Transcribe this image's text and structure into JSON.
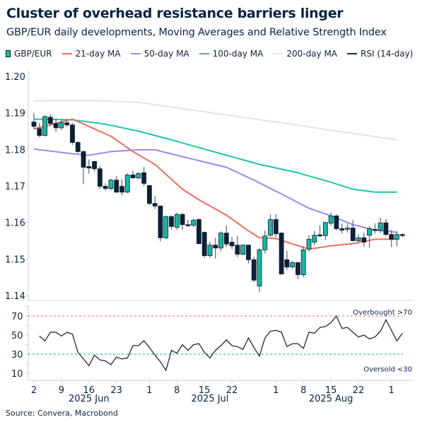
{
  "header": {
    "title": "Cluster of overhead resistance barriers linger",
    "subtitle": "GBP/EUR daily developments, Moving Averages and Relative Strength Index"
  },
  "legend": [
    {
      "label": "GBP/EUR",
      "type": "candle",
      "color": "#17b8a0"
    },
    {
      "label": "21-day MA",
      "type": "line",
      "color": "#e8705f"
    },
    {
      "label": "50-day MA",
      "type": "line",
      "color": "#9b87f5"
    },
    {
      "label": "100-day MA",
      "type": "line",
      "color": "#1ec6a8"
    },
    {
      "label": "200-day MA",
      "type": "line",
      "color": "#e4e4e4"
    },
    {
      "label": "RSI (14-day)",
      "type": "line",
      "color": "#1e2a3a"
    }
  ],
  "footer": {
    "source": "Source: Convera, Macrobond"
  },
  "chart_data": [
    {
      "type": "candlestick",
      "panel": "price",
      "ylim": [
        1.14,
        1.2
      ],
      "yticks": [
        "1.20",
        "1.19",
        "1.18",
        "1.17",
        "1.16",
        "1.15",
        "1.14"
      ],
      "colors": {
        "up": "#17b8a0",
        "down": "#0d2036",
        "wick": "#5a6675"
      },
      "series": [
        {
          "name": "GBP/EUR",
          "columns": [
            "date",
            "open",
            "high",
            "low",
            "close"
          ],
          "values": [
            [
              "2025-06-02",
              1.1875,
              1.19,
              1.1855,
              1.1863
            ],
            [
              "2025-06-03",
              1.1857,
              1.1872,
              1.1833,
              1.1838
            ],
            [
              "2025-06-04",
              1.1838,
              1.1893,
              1.1835,
              1.189
            ],
            [
              "2025-06-05",
              1.1888,
              1.1896,
              1.1863,
              1.1871
            ],
            [
              "2025-06-06",
              1.1871,
              1.1886,
              1.1848,
              1.1859
            ],
            [
              "2025-06-09",
              1.1859,
              1.1882,
              1.1853,
              1.1873
            ],
            [
              "2025-06-10",
              1.1873,
              1.1883,
              1.1862,
              1.1867
            ],
            [
              "2025-06-11",
              1.1867,
              1.1873,
              1.1812,
              1.1819
            ],
            [
              "2025-06-12",
              1.1819,
              1.1823,
              1.179,
              1.1794
            ],
            [
              "2025-06-13",
              1.1794,
              1.1798,
              1.1705,
              1.1751
            ],
            [
              "2025-06-16",
              1.1753,
              1.1773,
              1.1733,
              1.1749
            ],
            [
              "2025-06-17",
              1.1767,
              1.1768,
              1.174,
              1.1747
            ],
            [
              "2025-06-18",
              1.1747,
              1.1755,
              1.1692,
              1.1699
            ],
            [
              "2025-06-19",
              1.1699,
              1.1707,
              1.1686,
              1.1693
            ],
            [
              "2025-06-20",
              1.1693,
              1.172,
              1.1688,
              1.1716
            ],
            [
              "2025-06-23",
              1.1716,
              1.1727,
              1.168,
              1.1683
            ],
            [
              "2025-06-24",
              1.1699,
              1.1718,
              1.1675,
              1.1683
            ],
            [
              "2025-06-25",
              1.1683,
              1.1735,
              1.168,
              1.173
            ],
            [
              "2025-06-26",
              1.173,
              1.1742,
              1.172,
              1.1722
            ],
            [
              "2025-06-27",
              1.1722,
              1.1738,
              1.1718,
              1.1734
            ],
            [
              "2025-06-30",
              1.1736,
              1.1752,
              1.1699,
              1.1707
            ],
            [
              "2025-07-01",
              1.1701,
              1.1703,
              1.1648,
              1.1652
            ],
            [
              "2025-07-02",
              1.1652,
              1.1672,
              1.1637,
              1.1645
            ],
            [
              "2025-07-03",
              1.1645,
              1.1647,
              1.1548,
              1.1558
            ],
            [
              "2025-07-04",
              1.1558,
              1.162,
              1.1555,
              1.1616
            ],
            [
              "2025-07-07",
              1.1616,
              1.162,
              1.158,
              1.1589
            ],
            [
              "2025-07-08",
              1.1587,
              1.1627,
              1.158,
              1.1622
            ],
            [
              "2025-07-09",
              1.1622,
              1.1627,
              1.158,
              1.1594
            ],
            [
              "2025-07-10",
              1.1594,
              1.1608,
              1.1588,
              1.1591
            ],
            [
              "2025-07-11",
              1.1592,
              1.161,
              1.1588,
              1.1606
            ],
            [
              "2025-07-14",
              1.1608,
              1.1611,
              1.154,
              1.1542
            ],
            [
              "2025-07-15",
              1.1573,
              1.1575,
              1.1503,
              1.1509
            ],
            [
              "2025-07-16",
              1.1509,
              1.1547,
              1.1503,
              1.1538
            ],
            [
              "2025-07-17",
              1.1538,
              1.1558,
              1.1501,
              1.153
            ],
            [
              "2025-07-18",
              1.153,
              1.1576,
              1.1521,
              1.1571
            ],
            [
              "2025-07-21",
              1.1571,
              1.1592,
              1.1533,
              1.1541
            ],
            [
              "2025-07-22",
              1.1546,
              1.156,
              1.1527,
              1.1536
            ],
            [
              "2025-07-23",
              1.1538,
              1.1563,
              1.1505,
              1.1513
            ],
            [
              "2025-07-24",
              1.1513,
              1.154,
              1.151,
              1.1538
            ],
            [
              "2025-07-25",
              1.1538,
              1.154,
              1.1488,
              1.1498
            ],
            [
              "2025-07-28",
              1.1498,
              1.1506,
              1.1437,
              1.1442
            ],
            [
              "2025-07-29",
              1.1426,
              1.153,
              1.141,
              1.1525
            ],
            [
              "2025-07-30",
              1.1525,
              1.1578,
              1.1515,
              1.1563
            ],
            [
              "2025-07-31",
              1.1565,
              1.1622,
              1.156,
              1.1608
            ],
            [
              "2025-08-01",
              1.1608,
              1.1622,
              1.156,
              1.1569
            ],
            [
              "2025-08-04",
              1.1571,
              1.1573,
              1.1457,
              1.1459
            ],
            [
              "2025-08-05",
              1.1498,
              1.1522,
              1.147,
              1.1478
            ],
            [
              "2025-08-06",
              1.1478,
              1.1495,
              1.1473,
              1.149
            ],
            [
              "2025-08-07",
              1.149,
              1.1492,
              1.1445,
              1.1457
            ],
            [
              "2025-08-08",
              1.1457,
              1.1535,
              1.145,
              1.1525
            ],
            [
              "2025-08-11",
              1.1527,
              1.1565,
              1.152,
              1.1554
            ],
            [
              "2025-08-12",
              1.1546,
              1.1577,
              1.1538,
              1.1565
            ],
            [
              "2025-08-13",
              1.1566,
              1.1592,
              1.156,
              1.1564
            ],
            [
              "2025-08-14",
              1.1564,
              1.1602,
              1.1552,
              1.16
            ],
            [
              "2025-08-15",
              1.1598,
              1.1627,
              1.1591,
              1.1618
            ],
            [
              "2025-08-18",
              1.1618,
              1.1622,
              1.1578,
              1.1583
            ],
            [
              "2025-08-19",
              1.1583,
              1.1597,
              1.157,
              1.1579
            ],
            [
              "2025-08-20",
              1.1581,
              1.1597,
              1.1572,
              1.1585
            ],
            [
              "2025-08-21",
              1.1585,
              1.1607,
              1.1548,
              1.155
            ],
            [
              "2025-08-22",
              1.155,
              1.1568,
              1.1545,
              1.1558
            ],
            [
              "2025-08-25",
              1.1558,
              1.1572,
              1.1533,
              1.1546
            ],
            [
              "2025-08-26",
              1.1565,
              1.159,
              1.153,
              1.1583
            ],
            [
              "2025-08-27",
              1.1581,
              1.1598,
              1.157,
              1.1579
            ],
            [
              "2025-08-28",
              1.1579,
              1.1614,
              1.1571,
              1.1599
            ],
            [
              "2025-08-29",
              1.1599,
              1.1609,
              1.1563,
              1.1567
            ],
            [
              "2025-09-01",
              1.1567,
              1.158,
              1.1533,
              1.1554
            ],
            [
              "2025-09-02",
              1.1554,
              1.1576,
              1.1535,
              1.1567
            ],
            [
              "2025-09-03",
              1.1567,
              1.1571,
              1.156,
              1.1564
            ]
          ]
        },
        {
          "name": "21-day MA",
          "color": "#e8705f",
          "points": [
            [
              "2025-06-02",
              1.1856
            ],
            [
              "2025-06-11",
              1.1883
            ],
            [
              "2025-06-20",
              1.1836
            ],
            [
              "2025-06-26",
              1.1794
            ],
            [
              "2025-07-02",
              1.1759
            ],
            [
              "2025-07-09",
              1.1691
            ],
            [
              "2025-07-14",
              1.1662
            ],
            [
              "2025-07-21",
              1.162
            ],
            [
              "2025-07-25",
              1.1577
            ],
            [
              "2025-07-29",
              1.1558
            ],
            [
              "2025-08-01",
              1.1556
            ],
            [
              "2025-08-05",
              1.1546
            ],
            [
              "2025-08-11",
              1.1527
            ],
            [
              "2025-08-15",
              1.1536
            ],
            [
              "2025-08-21",
              1.1542
            ],
            [
              "2025-08-27",
              1.1554
            ],
            [
              "2025-09-02",
              1.1554
            ]
          ]
        },
        {
          "name": "50-day MA",
          "color": "#9b87f5",
          "points": [
            [
              "2025-06-02",
              1.1801
            ],
            [
              "2025-06-11",
              1.1788
            ],
            [
              "2025-06-16",
              1.1784
            ],
            [
              "2025-06-20",
              1.1794
            ],
            [
              "2025-06-27",
              1.1799
            ],
            [
              "2025-07-02",
              1.1799
            ],
            [
              "2025-07-09",
              1.178
            ],
            [
              "2025-07-21",
              1.1751
            ],
            [
              "2025-07-28",
              1.1716
            ],
            [
              "2025-08-04",
              1.1678
            ],
            [
              "2025-08-11",
              1.1639
            ],
            [
              "2025-08-15",
              1.1618
            ],
            [
              "2025-08-21",
              1.1594
            ],
            [
              "2025-08-27",
              1.1579
            ],
            [
              "2025-09-02",
              1.1573
            ]
          ]
        },
        {
          "name": "100-day MA",
          "color": "#1ec6a8",
          "points": [
            [
              "2025-06-02",
              1.1883
            ],
            [
              "2025-06-11",
              1.1881
            ],
            [
              "2025-06-19",
              1.1869
            ],
            [
              "2025-06-27",
              1.185
            ],
            [
              "2025-07-07",
              1.1826
            ],
            [
              "2025-07-21",
              1.1784
            ],
            [
              "2025-07-29",
              1.1759
            ],
            [
              "2025-08-07",
              1.1736
            ],
            [
              "2025-08-15",
              1.171
            ],
            [
              "2025-08-21",
              1.1691
            ],
            [
              "2025-08-27",
              1.1683
            ],
            [
              "2025-09-02",
              1.1683
            ]
          ]
        },
        {
          "name": "200-day MA",
          "color": "#e4e4e4",
          "points": [
            [
              "2025-06-02",
              1.1933
            ],
            [
              "2025-06-16",
              1.1934
            ],
            [
              "2025-06-27",
              1.1929
            ],
            [
              "2025-07-31",
              1.1877
            ],
            [
              "2025-09-02",
              1.1826
            ]
          ]
        }
      ]
    },
    {
      "type": "line",
      "panel": "rsi",
      "ylim": [
        0,
        80
      ],
      "yticks": [
        "70",
        "50",
        "30",
        "10"
      ],
      "thresholds": [
        {
          "value": 70,
          "label": "Overbought >70",
          "color": "#f08a80"
        },
        {
          "value": 30,
          "label": "Oversold <30",
          "color": "#2bc4b0"
        }
      ],
      "series": [
        {
          "name": "RSI (14-day)",
          "color": "#1e2a3a",
          "values": [
            null,
            49,
            44,
            53,
            53,
            49,
            53,
            51,
            32,
            25,
            18,
            29,
            24,
            23,
            19,
            27,
            25,
            26,
            39,
            39,
            44,
            37,
            29,
            22,
            13,
            34,
            31,
            40,
            34,
            40,
            41,
            32,
            26,
            34,
            39,
            45,
            39,
            38,
            35,
            47,
            37,
            28,
            47,
            54,
            55,
            53,
            38,
            41,
            41,
            36,
            53,
            52,
            58,
            59,
            63,
            70,
            57,
            58,
            53,
            48,
            50,
            46,
            48,
            54,
            66,
            55,
            44,
            52
          ]
        }
      ]
    }
  ],
  "xaxis": {
    "ticks": [
      {
        "date": "2025-06-02",
        "label": "2"
      },
      {
        "date": "2025-06-09",
        "label": "9"
      },
      {
        "date": "2025-06-16",
        "label": "16"
      },
      {
        "date": "2025-06-23",
        "label": "23"
      },
      {
        "date": "2025-07-01",
        "label": "1"
      },
      {
        "date": "2025-07-08",
        "label": "8"
      },
      {
        "date": "2025-07-15",
        "label": "15"
      },
      {
        "date": "2025-07-22",
        "label": "22"
      },
      {
        "date": "2025-08-01",
        "label": "1"
      },
      {
        "date": "2025-08-08",
        "label": "8"
      },
      {
        "date": "2025-08-15",
        "label": "15"
      },
      {
        "date": "2025-08-22",
        "label": "22"
      },
      {
        "date": "2025-09-01",
        "label": "1"
      }
    ],
    "months": [
      {
        "label": "2025 Jun",
        "from": "2025-06-02",
        "to": "2025-06-30"
      },
      {
        "label": "2025 Jul",
        "from": "2025-07-01",
        "to": "2025-07-31"
      },
      {
        "label": "2025 Aug",
        "from": "2025-08-01",
        "to": "2025-08-29"
      }
    ]
  }
}
